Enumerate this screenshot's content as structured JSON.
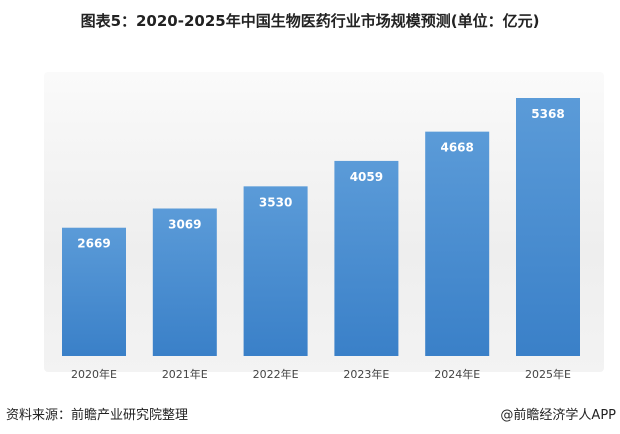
{
  "chart_data": {
    "type": "bar",
    "title": "图表5：2020-2025年中国生物医药行业市场规模预测(单位：亿元)",
    "categories": [
      "2020年E",
      "2021年E",
      "2022年E",
      "2023年E",
      "2024年E",
      "2025年E"
    ],
    "values": [
      2669,
      3069,
      3530,
      4059,
      4668,
      5368
    ],
    "ylim": [
      0,
      5368
    ],
    "xlabel": "",
    "ylabel": "",
    "grid": false,
    "bar_color": "#3f86cc",
    "label_color": "#ffffff"
  },
  "footer": {
    "source": "资料来源：前瞻产业研究院整理",
    "credit": "@前瞻经济学人APP"
  }
}
